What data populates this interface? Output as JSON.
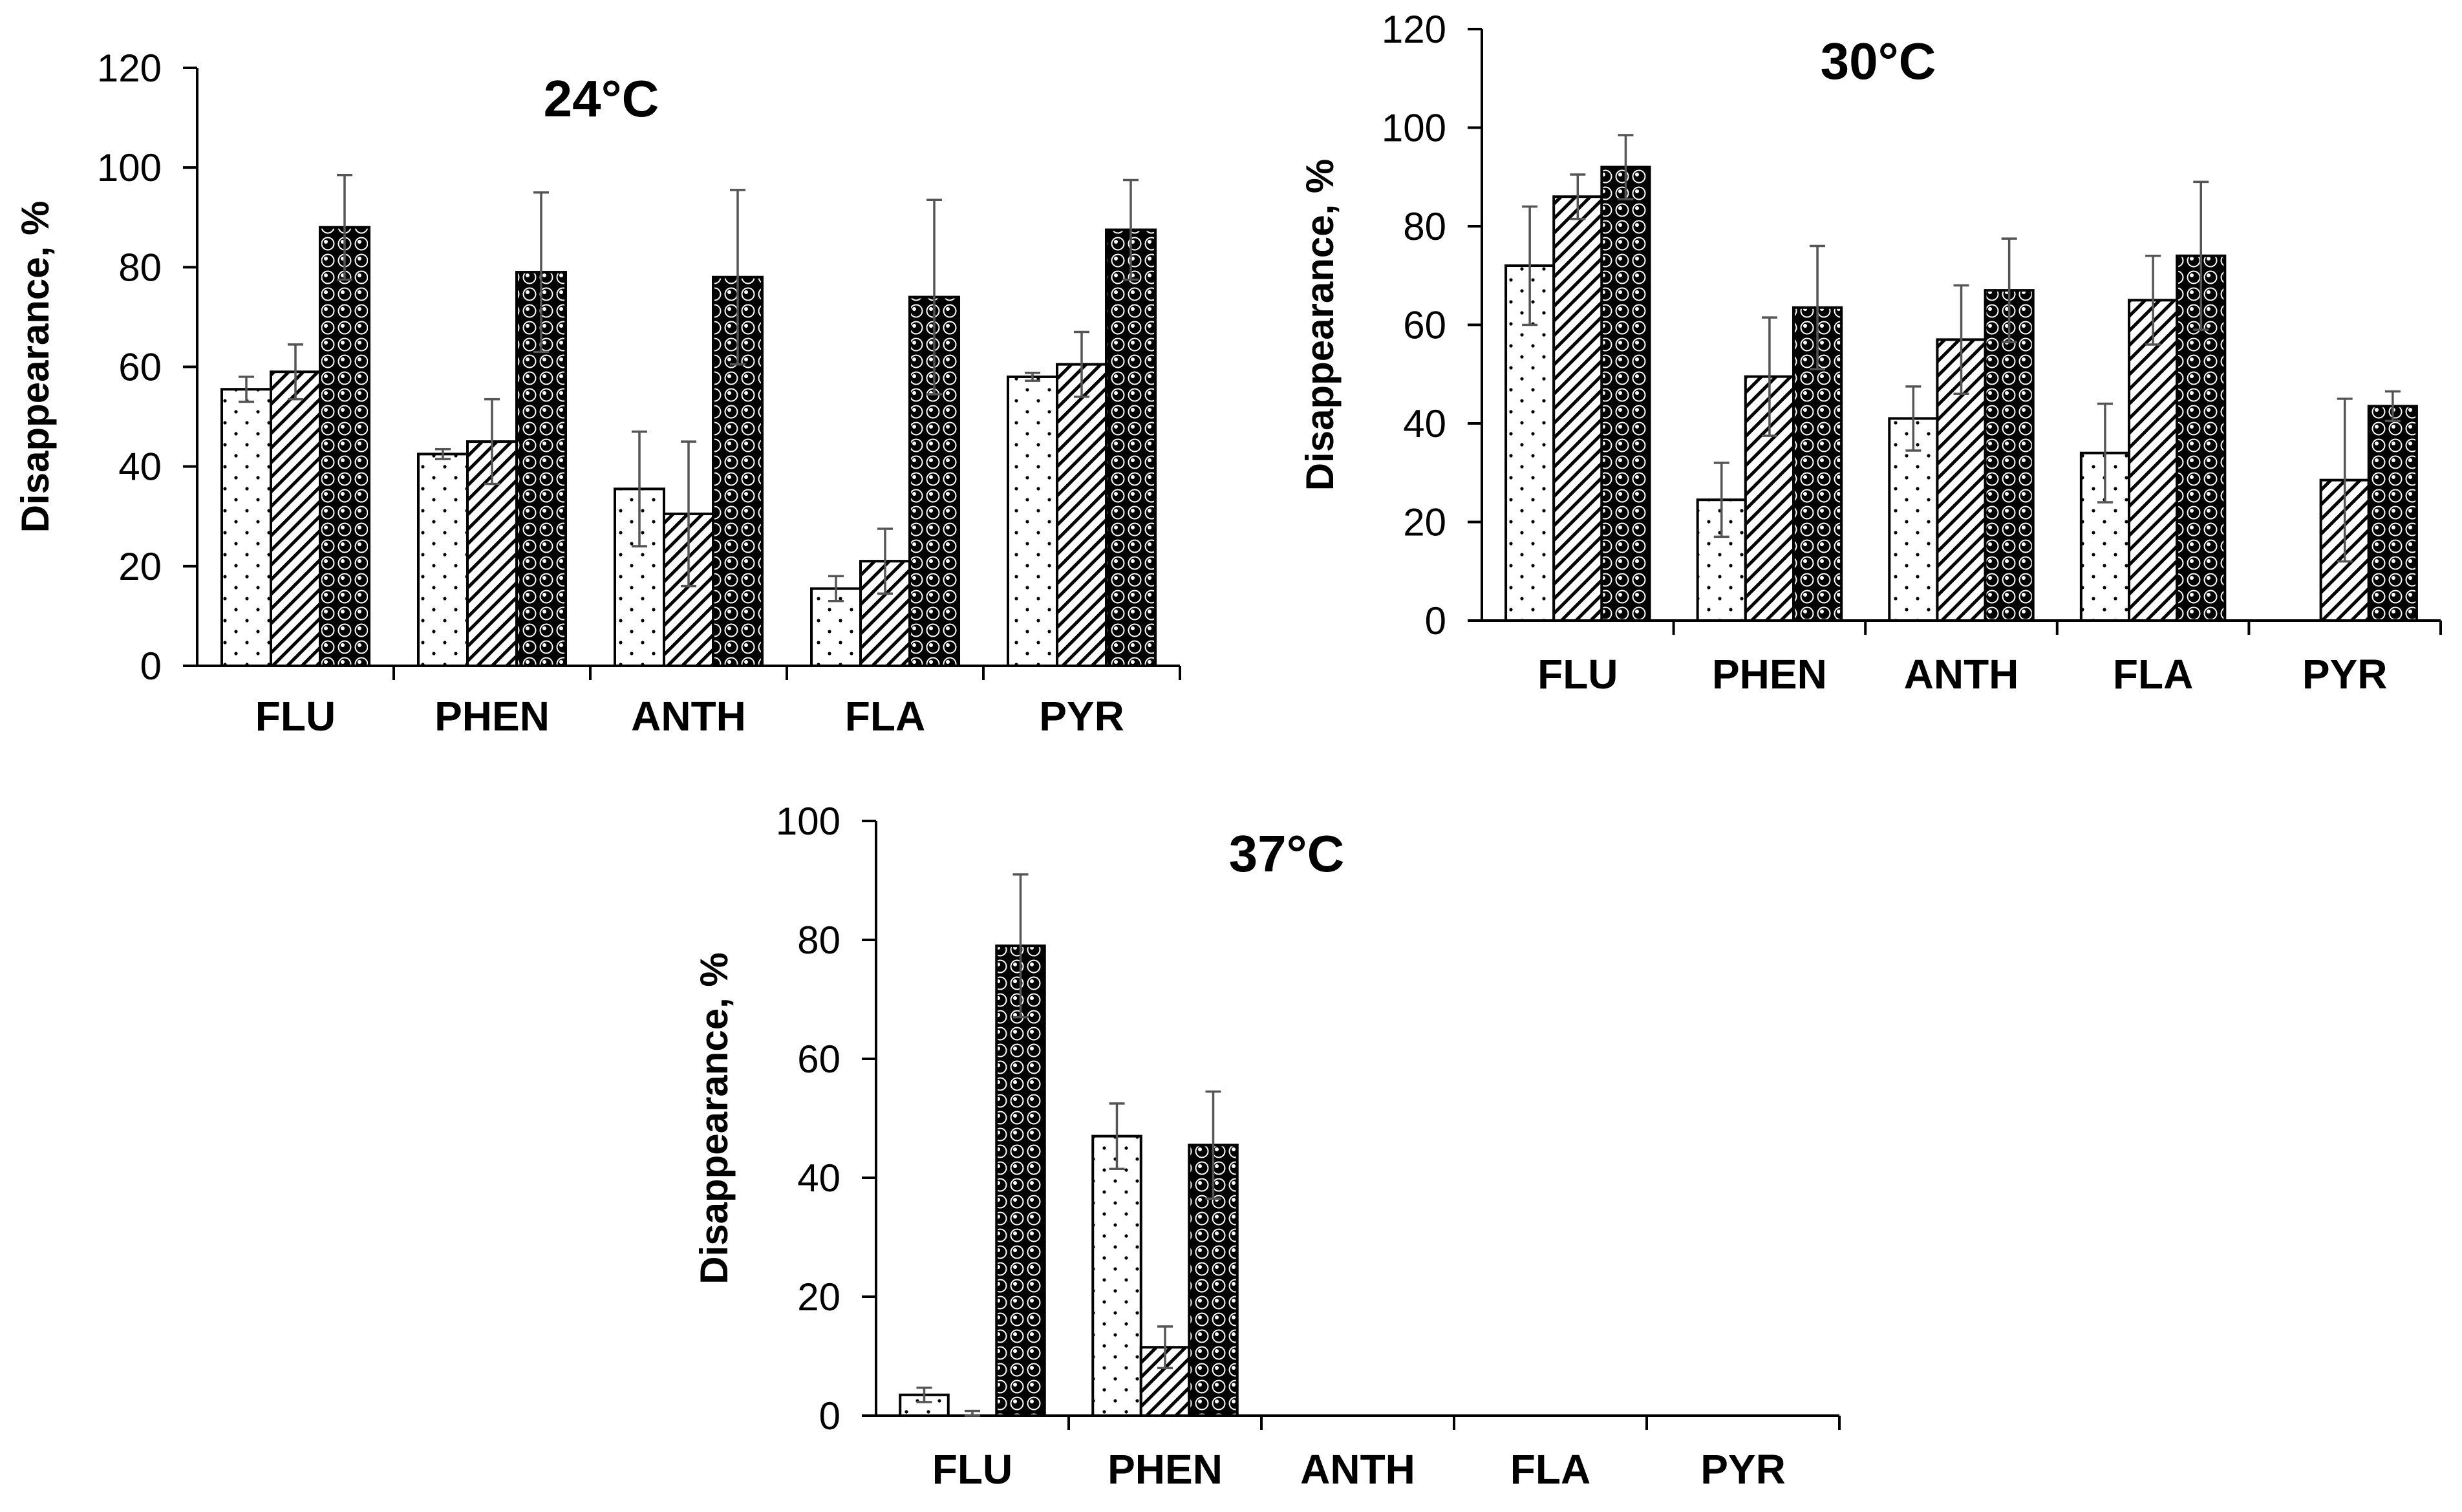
{
  "chart_data": [
    {
      "type": "bar",
      "title": "24°C",
      "xlabel": "",
      "ylabel": "Disappearance, %",
      "ylim": [
        0,
        120
      ],
      "yticks": [
        0,
        20,
        40,
        60,
        80,
        100,
        120
      ],
      "categories": [
        "FLU",
        "PHEN",
        "ANTH",
        "FLA",
        "PYR"
      ],
      "grid": false,
      "legend": "none",
      "series": [
        {
          "name": "series 1 (dotted)",
          "pattern": "dots",
          "values": [
            55.5,
            42.5,
            35.5,
            15.5,
            58
          ],
          "errors": [
            2.5,
            1,
            11.5,
            2.5,
            0.8
          ]
        },
        {
          "name": "series 2 (hatched)",
          "pattern": "hatch",
          "values": [
            59,
            45,
            30.5,
            21,
            60.5
          ],
          "errors": [
            5.5,
            8.5,
            14.5,
            6.5,
            6.5
          ]
        },
        {
          "name": "series 3 (dark circles)",
          "pattern": "circles",
          "values": [
            88,
            79,
            78,
            74,
            87.5
          ],
          "errors": [
            10.5,
            16,
            17.5,
            19.5,
            10
          ]
        }
      ]
    },
    {
      "type": "bar",
      "title": "30°C",
      "xlabel": "",
      "ylabel": "Disappearance, %",
      "ylim": [
        0,
        120
      ],
      "yticks": [
        0,
        20,
        40,
        60,
        80,
        100,
        120
      ],
      "categories": [
        "FLU",
        "PHEN",
        "ANTH",
        "FLA",
        "PYR"
      ],
      "grid": false,
      "legend": "none",
      "series": [
        {
          "name": "series 1 (dotted)",
          "pattern": "dots",
          "values": [
            72,
            24.5,
            41,
            34,
            0
          ],
          "errors": [
            12,
            7.5,
            6.5,
            10,
            0
          ]
        },
        {
          "name": "series 2 (hatched)",
          "pattern": "hatch",
          "values": [
            86,
            49.5,
            57,
            65,
            28.5
          ],
          "errors": [
            4.5,
            12,
            11,
            9,
            16.5
          ]
        },
        {
          "name": "series 3 (dark circles)",
          "pattern": "circles",
          "values": [
            92,
            63.5,
            67,
            74,
            43.5
          ],
          "errors": [
            6.5,
            12.5,
            10.5,
            15,
            3
          ]
        }
      ]
    },
    {
      "type": "bar",
      "title": "37°C",
      "xlabel": "",
      "ylabel": "Disappearance, %",
      "ylim": [
        0,
        100
      ],
      "yticks": [
        0,
        20,
        40,
        60,
        80,
        100
      ],
      "categories": [
        "FLU",
        "PHEN",
        "ANTH",
        "FLA",
        "PYR"
      ],
      "grid": false,
      "legend": "none",
      "series": [
        {
          "name": "series 1 (dotted)",
          "pattern": "dots",
          "values": [
            3.5,
            47,
            0,
            0,
            0
          ],
          "errors": [
            1.2,
            5.5,
            0,
            0,
            0
          ]
        },
        {
          "name": "series 2 (hatched)",
          "pattern": "hatch",
          "values": [
            0,
            11.5,
            0,
            0,
            0
          ],
          "errors": [
            0.8,
            3.5,
            0,
            0,
            0
          ]
        },
        {
          "name": "series 3 (dark circles)",
          "pattern": "circles",
          "values": [
            79,
            45.5,
            0,
            0,
            0
          ],
          "errors": [
            12,
            9,
            0,
            0,
            0
          ]
        }
      ]
    }
  ]
}
